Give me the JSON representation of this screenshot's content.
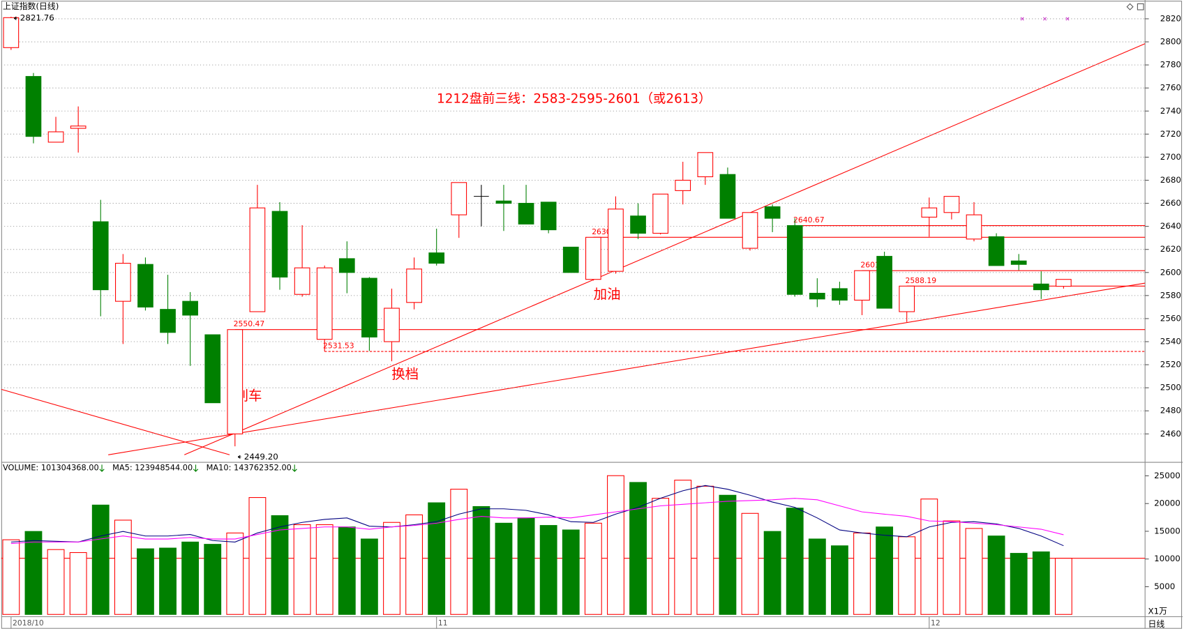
{
  "chart_data": [
    {
      "type": "candlestick",
      "title": "上证指数(日线)",
      "subtitle": "1212盘前三线：2583-2595-2601（或2613）",
      "annotations": [
        "刹车",
        "换档",
        "加油"
      ],
      "categories": [
        "2018/10",
        null,
        null,
        null,
        null,
        null,
        null,
        null,
        null,
        null,
        null,
        null,
        null,
        null,
        null,
        null,
        null,
        null,
        null,
        "11",
        null,
        null,
        null,
        null,
        null,
        null,
        null,
        null,
        null,
        null,
        null,
        null,
        null,
        null,
        null,
        null,
        null,
        null,
        null,
        null,
        null,
        "12",
        null,
        null,
        null,
        null,
        null,
        null
      ],
      "open": [
        2795,
        2770,
        2713,
        2725,
        2644,
        2575,
        2607,
        2568,
        2575,
        2546,
        2460,
        2566,
        2653,
        2581,
        2542,
        2612,
        2595,
        2540,
        2574,
        2617,
        2650,
        2666,
        2662,
        2660,
        2661,
        2622,
        2594,
        2601,
        2649,
        2634,
        2671,
        2683,
        2685,
        2621,
        2657,
        2640.67,
        2582,
        2586,
        2576,
        2614,
        2566,
        2648,
        2652,
        2629,
        2631,
        2610,
        2590,
        2588
      ],
      "high": [
        2821.76,
        2773,
        2735,
        2744,
        2663,
        2616,
        2613,
        2598,
        2583,
        2546,
        2550.47,
        2676,
        2661,
        2641,
        2606,
        2627,
        2596,
        2586,
        2613,
        2638,
        2678,
        2676,
        2676,
        2676,
        2661,
        2622,
        2630.52,
        2666,
        2660,
        2668,
        2696,
        2704,
        2691,
        2652,
        2659,
        2647,
        2595,
        2592,
        2601.59,
        2618,
        2588.19,
        2665,
        2666,
        2661,
        2634,
        2616,
        2601,
        2594
      ],
      "low": [
        2793,
        2712,
        2713,
        2704,
        2562,
        2538,
        2567,
        2538,
        2519,
        2487,
        2449.2,
        2566,
        2585,
        2579,
        2531.53,
        2582,
        2532,
        2523,
        2568,
        2606,
        2630,
        2640,
        2636,
        2642,
        2634,
        2600,
        2593,
        2599,
        2629,
        2633,
        2659,
        2676,
        2647,
        2619,
        2635,
        2579,
        2570,
        2572,
        2563,
        2569,
        2557,
        2631,
        2646,
        2627,
        2606,
        2602,
        2577,
        2586
      ],
      "close": [
        2821,
        2718,
        2722,
        2727,
        2585,
        2608,
        2570,
        2548,
        2563,
        2487,
        2550.47,
        2656,
        2596,
        2604,
        2604,
        2600,
        2544,
        2569,
        2603,
        2608,
        2678,
        2666,
        2660,
        2642,
        2637,
        2600,
        2630.52,
        2655,
        2634,
        2668,
        2680,
        2704,
        2647,
        2652,
        2647,
        2581,
        2577,
        2576,
        2601.59,
        2569,
        2588.19,
        2656,
        2666,
        2650,
        2606,
        2607,
        2585,
        2594
      ],
      "up_color": "#ff0000",
      "down_color": "#008000",
      "flat_color": "#000000",
      "point_labels": [
        {
          "value": 2821.76,
          "label": "2821.76"
        },
        {
          "value": 2449.2,
          "label": "2449.20"
        }
      ],
      "levels": [
        {
          "value": 2640.67,
          "line_style": "solid"
        },
        {
          "value": 2630.52,
          "line_style": "solid"
        },
        {
          "value": 2601.59,
          "line_style": "solid"
        },
        {
          "value": 2588.19,
          "line_style": "solid"
        },
        {
          "value": 2550.47,
          "line_style": "solid"
        },
        {
          "value": 2531.53,
          "line_style": "dashed"
        }
      ],
      "ylim": [
        2436,
        2835
      ],
      "yticks": [
        2460,
        2480,
        2500,
        2520,
        2540,
        2560,
        2580,
        2600,
        2620,
        2640,
        2660,
        2680,
        2700,
        2720,
        2740,
        2760,
        2780,
        2800,
        2820
      ],
      "grid": true,
      "period_label": "日线"
    },
    {
      "type": "bar",
      "y_unit_label": "X1万",
      "series": [
        {
          "name": "VOLUME: 101304368.00",
          "type": "bar",
          "color": "#000080",
          "values": [
            13470,
            14970,
            11700,
            11160,
            19730,
            17010,
            11840,
            11970,
            13060,
            12650,
            14690,
            21090,
            17820,
            16190,
            16190,
            15780,
            13610,
            16600,
            17960,
            20140,
            22590,
            19460,
            16460,
            17410,
            16050,
            15240,
            16460,
            25030,
            23810,
            20950,
            24220,
            23130,
            21500,
            18230,
            14970,
            19180,
            13610,
            12380,
            14690,
            15780,
            14010,
            20820,
            16870,
            15510,
            14150,
            11020,
            11290,
            10130
          ]
        },
        {
          "name": "MA5: 123948544.00",
          "type": "line",
          "color": "#000080",
          "values": [
            13060,
            13330,
            13200,
            13060,
            14150,
            14970,
            14150,
            14150,
            14420,
            13330,
            13060,
            14690,
            15780,
            16600,
            17140,
            17410,
            15920,
            15780,
            16190,
            16730,
            18090,
            19050,
            19050,
            18770,
            17960,
            16730,
            16600,
            18090,
            19320,
            20950,
            22310,
            23260,
            22580,
            21500,
            20270,
            19320,
            17410,
            15240,
            14690,
            14290,
            14010,
            15780,
            16600,
            16730,
            16330,
            15510,
            14150,
            12395
          ]
        },
        {
          "name": "MA10: 143762352.00",
          "type": "line",
          "color": "#ff00ff",
          "values": [
            12790,
            13060,
            13060,
            13060,
            13610,
            14150,
            13610,
            13610,
            13880,
            13610,
            13610,
            14420,
            15240,
            15510,
            15780,
            15780,
            15370,
            15780,
            16050,
            16460,
            17140,
            17690,
            17410,
            17410,
            17550,
            17410,
            17960,
            18500,
            19050,
            19590,
            19860,
            20140,
            20410,
            20540,
            20680,
            20950,
            20680,
            19590,
            18500,
            18090,
            17690,
            16870,
            16730,
            16460,
            16190,
            15780,
            15370,
            14376
          ]
        }
      ],
      "ylim": [
        0,
        27300
      ],
      "yticks": [
        5000,
        10000,
        15000,
        20000,
        25000
      ]
    }
  ]
}
